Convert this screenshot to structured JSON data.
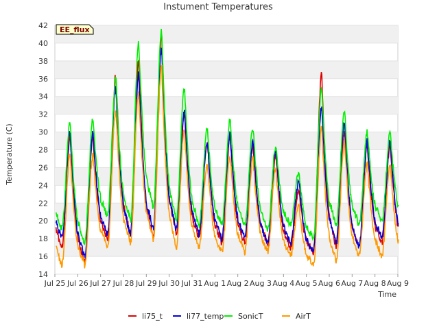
{
  "chart_data": {
    "type": "line",
    "title": "Instument Temperatures",
    "xlabel": "Time",
    "ylabel": "Temperature (C)",
    "badge": "EE_flux",
    "ylim": [
      14,
      42
    ],
    "yticks": [
      14,
      16,
      18,
      20,
      22,
      24,
      26,
      28,
      30,
      32,
      34,
      36,
      38,
      40,
      42
    ],
    "xlim": [
      "Jul 25",
      "Aug 9"
    ],
    "xticks": [
      "Jul 25",
      "Jul 26",
      "Jul 27",
      "Jul 28",
      "Jul 29",
      "Jul 30",
      "Jul 31",
      "Aug 1",
      "Aug 2",
      "Aug 3",
      "Aug 4",
      "Aug 5",
      "Aug 6",
      "Aug 7",
      "Aug 8",
      "Aug 9"
    ],
    "grid": "horizontal bands",
    "legend_position": "bottom",
    "daily_extremes_note_free": true,
    "days": [
      "Jul 25",
      "Jul 26",
      "Jul 27",
      "Jul 28",
      "Jul 29",
      "Jul 30",
      "Jul 31",
      "Aug 1",
      "Aug 2",
      "Aug 3",
      "Aug 4",
      "Aug 5",
      "Aug 6",
      "Aug 7",
      "Aug 8"
    ],
    "series": [
      {
        "name": "li75_t",
        "color": "#dd0000",
        "min": [
          17.0,
          15.5,
          18.0,
          18.5,
          18.0,
          18.5,
          18.0,
          17.5,
          17.5,
          17.5,
          17.0,
          16.5,
          17.0,
          17.0,
          17.5
        ],
        "max": [
          29.5,
          29.5,
          36.5,
          38.0,
          41.0,
          32.0,
          29.0,
          29.5,
          28.5,
          27.5,
          23.5,
          36.5,
          30.0,
          28.5,
          28.5
        ]
      },
      {
        "name": "li77_temp",
        "color": "#0000dd",
        "min": [
          18.0,
          16.0,
          18.5,
          18.5,
          19.0,
          19.0,
          18.5,
          18.0,
          18.0,
          17.5,
          17.5,
          16.5,
          17.5,
          17.0,
          18.0
        ],
        "max": [
          30.0,
          30.0,
          35.0,
          36.5,
          39.5,
          32.5,
          29.0,
          30.0,
          29.0,
          28.0,
          24.5,
          33.0,
          31.0,
          29.0,
          29.0
        ]
      },
      {
        "name": "SonicT",
        "color": "#00ee00",
        "min": [
          19.0,
          17.5,
          20.5,
          20.0,
          21.5,
          20.0,
          19.5,
          19.5,
          19.5,
          19.0,
          19.5,
          18.0,
          19.5,
          19.5,
          20.0
        ],
        "max": [
          31.0,
          31.5,
          36.0,
          40.0,
          41.5,
          35.0,
          30.5,
          31.5,
          30.5,
          28.5,
          25.5,
          35.0,
          32.5,
          30.0,
          30.0
        ]
      },
      {
        "name": "AirT",
        "color": "#ff9900",
        "min": [
          15.0,
          15.0,
          17.0,
          17.5,
          18.0,
          17.0,
          17.0,
          16.5,
          16.5,
          16.5,
          16.0,
          15.0,
          15.5,
          16.0,
          16.0
        ],
        "max": [
          27.5,
          27.5,
          32.5,
          34.5,
          37.5,
          30.5,
          26.5,
          27.5,
          27.0,
          26.0,
          22.0,
          30.5,
          29.0,
          26.5,
          26.5
        ]
      }
    ]
  }
}
